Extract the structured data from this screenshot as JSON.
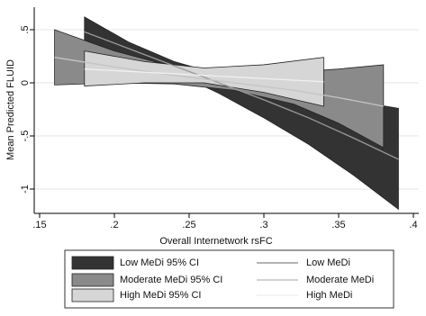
{
  "chart_data": {
    "type": "line",
    "x_label": "Overall Internetwork rsFC",
    "y_label": "Mean Predicted FLUID",
    "xlim": [
      0.1464,
      0.4036
    ],
    "ylim": [
      -1.229,
      0.712
    ],
    "xticks": [
      {
        "value": 0.15,
        "label": ".15"
      },
      {
        "value": 0.2,
        "label": ".2"
      },
      {
        "value": 0.25,
        "label": ".25"
      },
      {
        "value": 0.3,
        "label": ".3"
      },
      {
        "value": 0.35,
        "label": ".35"
      },
      {
        "value": 0.4,
        "label": ".4"
      }
    ],
    "yticks": [
      {
        "value": 0.5,
        "label": ".5"
      },
      0,
      {
        "value": -0.5,
        "label": "-.5"
      },
      -1
    ],
    "grid": true,
    "bands": [
      {
        "name": "Low MeDi 95% CI",
        "color": "#333333",
        "x": [
          0.18,
          0.21,
          0.24,
          0.27,
          0.3,
          0.33,
          0.36,
          0.39
        ],
        "upper": [
          0.62,
          0.38,
          0.2,
          0.08,
          -0.02,
          -0.1,
          -0.17,
          -0.24
        ],
        "lower": [
          0.35,
          0.22,
          0.1,
          -0.1,
          -0.33,
          -0.58,
          -0.87,
          -1.19
        ]
      },
      {
        "name": "Moderate MeDi 95% CI",
        "color": "#8a8a8a",
        "x": [
          0.16,
          0.2,
          0.24,
          0.28,
          0.32,
          0.35,
          0.38
        ],
        "upper": [
          0.5,
          0.3,
          0.15,
          0.1,
          0.1,
          0.13,
          0.17
        ],
        "lower": [
          -0.02,
          0.0,
          -0.01,
          -0.07,
          -0.2,
          -0.38,
          -0.61
        ]
      },
      {
        "name": "High MeDi 95% CI",
        "color": "#d6d6d6",
        "x": [
          0.18,
          0.22,
          0.26,
          0.3,
          0.34
        ],
        "upper": [
          0.3,
          0.2,
          0.14,
          0.17,
          0.24
        ],
        "lower": [
          -0.03,
          0.0,
          0.0,
          -0.09,
          -0.22
        ]
      }
    ],
    "series": [
      {
        "name": "Low MeDi",
        "color": "#9a9a9a",
        "x": [
          0.18,
          0.21,
          0.24,
          0.27,
          0.3,
          0.33,
          0.36,
          0.39
        ],
        "values": [
          0.48,
          0.32,
          0.16,
          0.0,
          -0.16,
          -0.33,
          -0.52,
          -0.72
        ]
      },
      {
        "name": "Moderate MeDi",
        "color": "#c4c4c4",
        "x": [
          0.16,
          0.2,
          0.24,
          0.28,
          0.32,
          0.35,
          0.38
        ],
        "values": [
          0.24,
          0.15,
          0.07,
          0.0,
          -0.07,
          -0.14,
          -0.22
        ]
      },
      {
        "name": "High MeDi",
        "color": "#f0f0f0",
        "x": [
          0.18,
          0.22,
          0.26,
          0.3,
          0.34
        ],
        "values": [
          0.13,
          0.1,
          0.07,
          0.04,
          0.01
        ]
      }
    ]
  }
}
